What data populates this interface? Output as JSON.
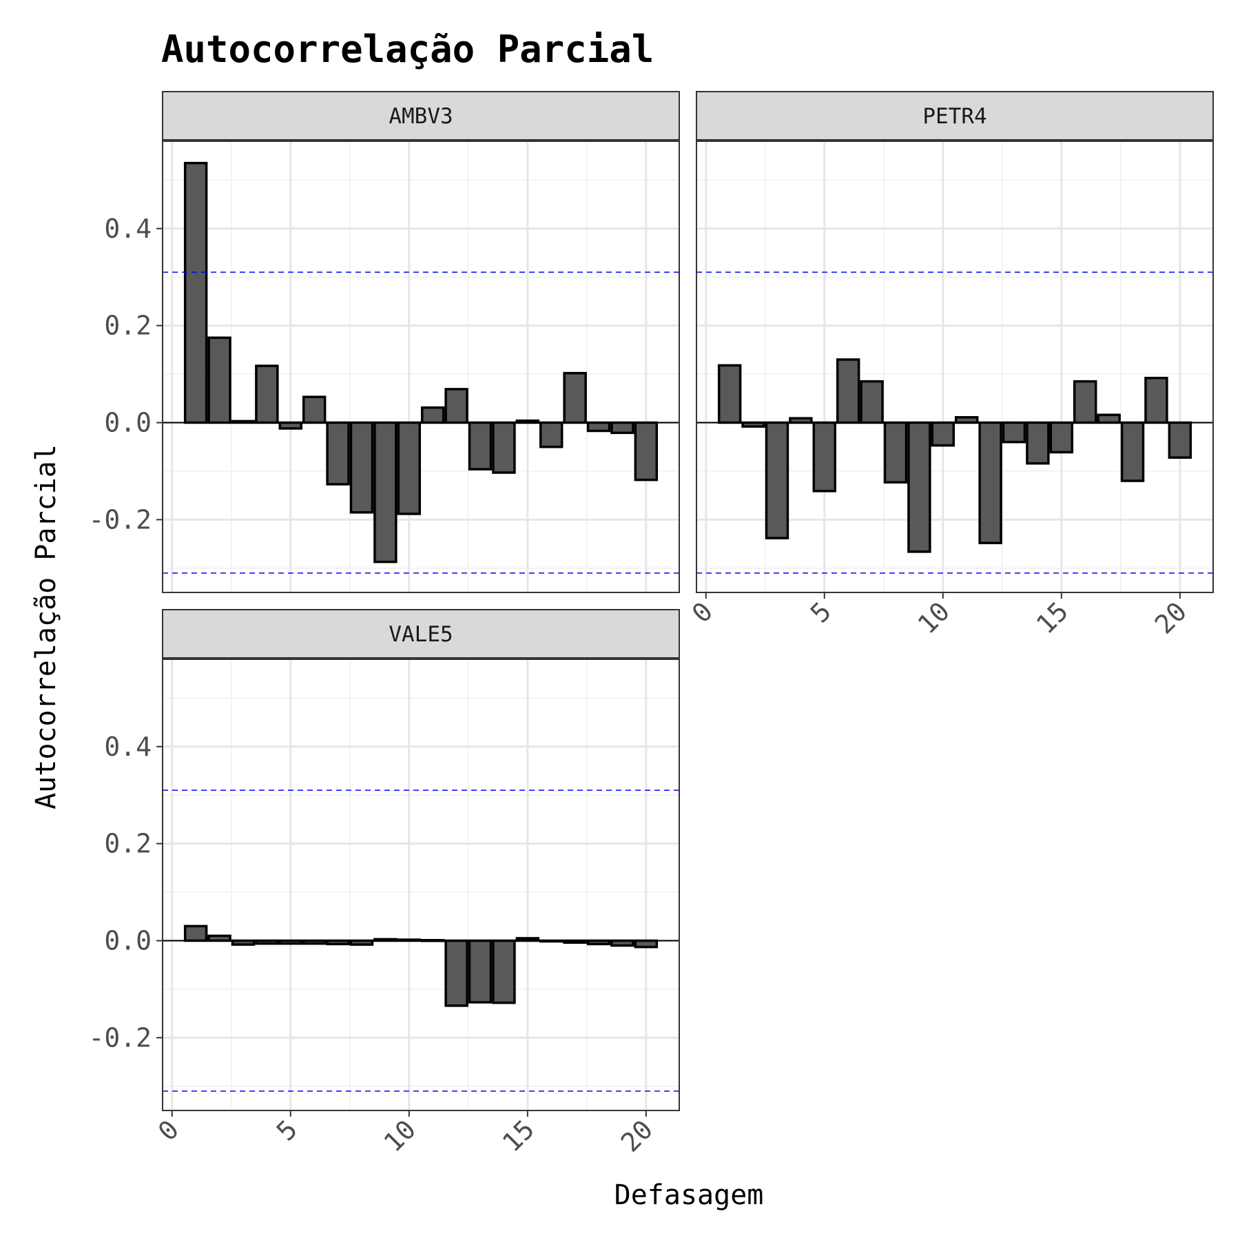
{
  "chart_data": {
    "type": "bar",
    "title": "Autocorrelação Parcial",
    "xlabel": "Defasagem",
    "ylabel": "Autocorrelação Parcial",
    "x_ticks": [
      0,
      5,
      10,
      15,
      20
    ],
    "y_ticks": [
      -0.2,
      0.0,
      0.2,
      0.4
    ],
    "y_tick_labels": [
      "-0.2",
      "0.0",
      "0.2",
      "0.4"
    ],
    "x_tick_labels": [
      "0",
      "5",
      "10",
      "15",
      "20"
    ],
    "xlim": [
      -0.4,
      21.4
    ],
    "ylim": [
      -0.35,
      0.58
    ],
    "confidence_bound": 0.31,
    "confidence_line_color": "#0000ff",
    "bar_fill": "#595959",
    "bar_outline": "#000000",
    "strip_fill": "#d9d9d9",
    "grid": true,
    "lags": [
      1,
      2,
      3,
      4,
      5,
      6,
      7,
      8,
      9,
      10,
      11,
      12,
      13,
      14,
      15,
      16,
      17,
      18,
      19,
      20
    ],
    "panels": [
      {
        "name": "AMBV3",
        "values": [
          0.535,
          0.175,
          0.003,
          0.117,
          -0.012,
          0.053,
          -0.127,
          -0.185,
          -0.287,
          -0.188,
          0.031,
          0.069,
          -0.096,
          -0.103,
          0.004,
          -0.05,
          0.102,
          -0.017,
          -0.021,
          -0.118
        ]
      },
      {
        "name": "PETR4",
        "values": [
          0.118,
          -0.008,
          -0.238,
          0.009,
          -0.141,
          0.13,
          0.085,
          -0.123,
          -0.266,
          -0.047,
          0.011,
          -0.248,
          -0.04,
          -0.084,
          -0.061,
          0.085,
          0.016,
          -0.12,
          0.092,
          -0.072
        ]
      },
      {
        "name": "VALE5",
        "values": [
          0.03,
          0.01,
          -0.008,
          -0.006,
          -0.006,
          -0.006,
          -0.007,
          -0.008,
          0.003,
          0.002,
          0.001,
          -0.134,
          -0.127,
          -0.128,
          0.005,
          0.0,
          -0.004,
          -0.007,
          -0.01,
          -0.013
        ]
      }
    ]
  }
}
